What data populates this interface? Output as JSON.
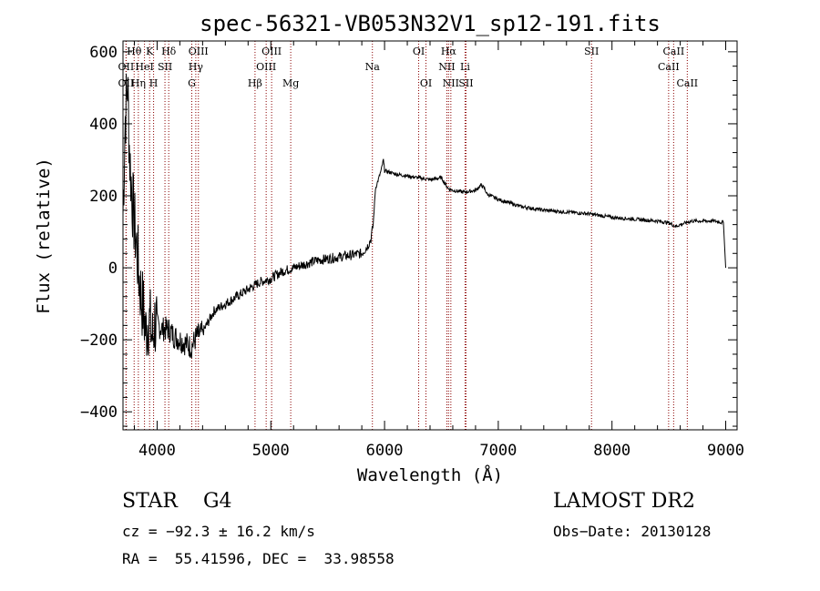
{
  "title": "spec-56321-VB053N32V1_sp12-191.fits",
  "chart_data": {
    "type": "line",
    "xlabel": "Wavelength (Å)",
    "ylabel": "Flux (relative)",
    "xlim": [
      3700,
      9100
    ],
    "ylim": [
      -450,
      630
    ],
    "x_ticks": [
      4000,
      5000,
      6000,
      7000,
      8000,
      9000
    ],
    "y_ticks": [
      -400,
      -200,
      0,
      200,
      400,
      600
    ],
    "x_tick_labels": [
      "4000",
      "5000",
      "6000",
      "7000",
      "8000",
      "9000"
    ],
    "y_tick_labels": [
      "−400",
      "−200",
      "0",
      "200",
      "400",
      "600"
    ],
    "series": [
      {
        "x": [
          3700,
          3720,
          3740,
          3760,
          3780,
          3800,
          3820,
          3840,
          3860,
          3880,
          3900,
          3920,
          3940,
          3960,
          3980,
          4000,
          4050,
          4100,
          4150,
          4200,
          4250,
          4300,
          4350,
          4400,
          4500,
          4600,
          4700,
          4800,
          4900,
          5000,
          5100,
          5200,
          5300,
          5400,
          5500,
          5600,
          5700,
          5800,
          5850,
          5880,
          5900,
          5920,
          5950,
          5970,
          5990,
          6000,
          6050,
          6100,
          6200,
          6300,
          6400,
          6500,
          6560,
          6600,
          6700,
          6800,
          6850,
          6880,
          6900,
          7000,
          7200,
          7400,
          7600,
          7800,
          8000,
          8200,
          8400,
          8500,
          8560,
          8600,
          8700,
          8800,
          8900,
          8980,
          9000
        ],
        "y": [
          150,
          420,
          510,
          300,
          200,
          120,
          60,
          -20,
          -80,
          -120,
          -180,
          -140,
          -160,
          -200,
          -150,
          -160,
          -170,
          -170,
          -190,
          -200,
          -210,
          -220,
          -190,
          -180,
          -120,
          -100,
          -80,
          -60,
          -40,
          -30,
          -10,
          0,
          10,
          20,
          25,
          30,
          35,
          40,
          60,
          80,
          120,
          220,
          250,
          270,
          300,
          270,
          265,
          260,
          255,
          250,
          245,
          250,
          220,
          215,
          210,
          215,
          230,
          220,
          205,
          190,
          170,
          160,
          155,
          150,
          140,
          135,
          130,
          125,
          115,
          120,
          130,
          130,
          130,
          125,
          0
        ]
      }
    ],
    "line_labels": [
      {
        "label": "Hθ",
        "x": 3798,
        "row": 0
      },
      {
        "label": "K",
        "x": 3934,
        "row": 0
      },
      {
        "label": "Hδ",
        "x": 4102,
        "row": 0
      },
      {
        "label": "OIII",
        "x": 4363,
        "row": 0
      },
      {
        "label": "OIII",
        "x": 5007,
        "row": 0
      },
      {
        "label": "OI",
        "x": 6300,
        "row": 0
      },
      {
        "label": "Hα",
        "x": 6563,
        "row": 0
      },
      {
        "label": "SII",
        "x": 7820,
        "row": 0
      },
      {
        "label": "CaII",
        "x": 8542,
        "row": 0
      },
      {
        "label": "OII",
        "x": 3727,
        "row": 1
      },
      {
        "label": "HeI",
        "x": 3889,
        "row": 1
      },
      {
        "label": "SII",
        "x": 4069,
        "row": 1
      },
      {
        "label": "Hγ",
        "x": 4340,
        "row": 1
      },
      {
        "label": "OIII",
        "x": 4959,
        "row": 1
      },
      {
        "label": "Na",
        "x": 5893,
        "row": 1
      },
      {
        "label": "NII",
        "x": 6548,
        "row": 1
      },
      {
        "label": "Li",
        "x": 6708,
        "row": 1
      },
      {
        "label": "CaII",
        "x": 8498,
        "row": 1
      },
      {
        "label": "OII",
        "x": 3727,
        "row": 2
      },
      {
        "label": "Hη",
        "x": 3835,
        "row": 2
      },
      {
        "label": "H",
        "x": 3969,
        "row": 2
      },
      {
        "label": "G",
        "x": 4305,
        "row": 2
      },
      {
        "label": "Hβ",
        "x": 4861,
        "row": 2
      },
      {
        "label": "Mg",
        "x": 5175,
        "row": 2
      },
      {
        "label": "OI",
        "x": 6364,
        "row": 2
      },
      {
        "label": "NII",
        "x": 6583,
        "row": 2
      },
      {
        "label": "SII",
        "x": 6716,
        "row": 2
      },
      {
        "label": "CaII",
        "x": 8662,
        "row": 2
      }
    ],
    "line_color": "#8b0000"
  },
  "info": {
    "class_line": "STAR    G4",
    "survey": "LAMOST DR2",
    "cz": "cz = −92.3 ± 16.2 km/s",
    "obs_date": "Obs−Date: 20130128",
    "radec": "RA =  55.41596, DEC =  33.98558"
  }
}
